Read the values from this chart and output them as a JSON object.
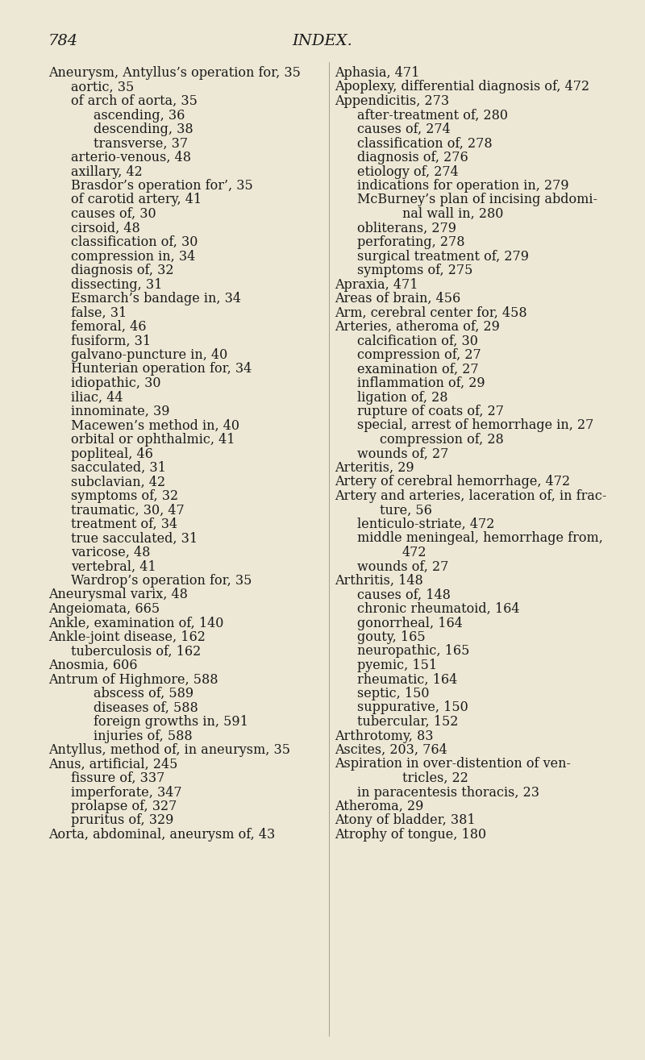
{
  "bg_color": "#ede8d5",
  "text_color": "#1a1a1a",
  "page_number": "784",
  "page_title": "INDEX.",
  "header_fontsize": 14,
  "body_fontsize": 11.5,
  "left_column": [
    [
      "Aneurysm, Antyllus’s operation for, 35",
      0
    ],
    [
      "aortic, 35",
      1
    ],
    [
      "of arch of aorta, 35",
      1
    ],
    [
      "ascending, 36",
      2
    ],
    [
      "descending, 38",
      2
    ],
    [
      "transverse, 37",
      2
    ],
    [
      "arterio-venous, 48",
      1
    ],
    [
      "axillary, 42",
      1
    ],
    [
      "Brasdor’s operation for’, 35",
      1
    ],
    [
      "of carotid artery, 41",
      1
    ],
    [
      "causes of, 30",
      1
    ],
    [
      "cirsoid, 48",
      1
    ],
    [
      "classification of, 30",
      1
    ],
    [
      "compression in, 34",
      1
    ],
    [
      "diagnosis of, 32",
      1
    ],
    [
      "dissecting, 31",
      1
    ],
    [
      "Esmarch’s bandage in, 34",
      1
    ],
    [
      "false, 31",
      1
    ],
    [
      "femoral, 46",
      1
    ],
    [
      "fusiform, 31",
      1
    ],
    [
      "galvano-puncture in, 40",
      1
    ],
    [
      "Hunterian operation for, 34",
      1
    ],
    [
      "idiopathic, 30",
      1
    ],
    [
      "iliac, 44",
      1
    ],
    [
      "innominate, 39",
      1
    ],
    [
      "Macewen’s method in, 40",
      1
    ],
    [
      "orbital or ophthalmic, 41",
      1
    ],
    [
      "popliteal, 46",
      1
    ],
    [
      "sacculated, 31",
      1
    ],
    [
      "subclavian, 42",
      1
    ],
    [
      "symptoms of, 32",
      1
    ],
    [
      "traumatic, 30, 47",
      1
    ],
    [
      "treatment of, 34",
      1
    ],
    [
      "true sacculated, 31",
      1
    ],
    [
      "varicose, 48",
      1
    ],
    [
      "vertebral, 41",
      1
    ],
    [
      "Wardrop’s operation for, 35",
      1
    ],
    [
      "Aneurysmal varix, 48",
      0
    ],
    [
      "Angeiomata, 665",
      0
    ],
    [
      "Ankle, examination of, 140",
      0
    ],
    [
      "Ankle-joint disease, 162",
      0
    ],
    [
      "tuberculosis of, 162",
      1
    ],
    [
      "Anosmia, 606",
      0
    ],
    [
      "Antrum of Highmore, 588",
      0
    ],
    [
      "abscess of, 589",
      2
    ],
    [
      "diseases of, 588",
      2
    ],
    [
      "foreign growths in, 591",
      2
    ],
    [
      "injuries of, 588",
      2
    ],
    [
      "Antyllus, method of, in aneurysm, 35",
      0
    ],
    [
      "Anus, artificial, 245",
      0
    ],
    [
      "fissure of, 337",
      1
    ],
    [
      "imperforate, 347",
      1
    ],
    [
      "prolapse of, 327",
      1
    ],
    [
      "pruritus of, 329",
      1
    ],
    [
      "Aorta, abdominal, aneurysm of, 43",
      0
    ]
  ],
  "right_column": [
    [
      "Aphasia, 471",
      0
    ],
    [
      "Apoplexy, differential diagnosis of, 472",
      0
    ],
    [
      "Appendicitis, 273",
      0
    ],
    [
      "after-treatment of, 280",
      1
    ],
    [
      "causes of, 274",
      1
    ],
    [
      "classification of, 278",
      1
    ],
    [
      "diagnosis of, 276",
      1
    ],
    [
      "etiology of, 274",
      1
    ],
    [
      "indications for operation in, 279",
      1
    ],
    [
      "McBurney’s plan of incising abdomi-",
      1
    ],
    [
      "nal wall in, 280",
      3
    ],
    [
      "obliterans, 279",
      1
    ],
    [
      "perforating, 278",
      1
    ],
    [
      "surgical treatment of, 279",
      1
    ],
    [
      "symptoms of, 275",
      1
    ],
    [
      "Apraxia, 471",
      0
    ],
    [
      "Areas of brain, 456",
      0
    ],
    [
      "Arm, cerebral center for, 458",
      0
    ],
    [
      "Arteries, atheroma of, 29",
      0
    ],
    [
      "calcification of, 30",
      1
    ],
    [
      "compression of, 27",
      1
    ],
    [
      "examination of, 27",
      1
    ],
    [
      "inflammation of, 29",
      1
    ],
    [
      "ligation of, 28",
      1
    ],
    [
      "rupture of coats of, 27",
      1
    ],
    [
      "special, arrest of hemorrhage in, 27",
      1
    ],
    [
      "compression of, 28",
      2
    ],
    [
      "wounds of, 27",
      1
    ],
    [
      "Arteritis, 29",
      0
    ],
    [
      "Artery of cerebral hemorrhage, 472",
      0
    ],
    [
      "Artery and arteries, laceration of, in frac-",
      0
    ],
    [
      "ture, 56",
      2
    ],
    [
      "lenticulo-striate, 472",
      1
    ],
    [
      "middle meningeal, hemorrhage from,",
      1
    ],
    [
      "472",
      3
    ],
    [
      "wounds of, 27",
      1
    ],
    [
      "Arthritis, 148",
      0
    ],
    [
      "causes of, 148",
      1
    ],
    [
      "chronic rheumatoid, 164",
      1
    ],
    [
      "gonorrheal, 164",
      1
    ],
    [
      "gouty, 165",
      1
    ],
    [
      "neuropathic, 165",
      1
    ],
    [
      "pyemic, 151",
      1
    ],
    [
      "rheumatic, 164",
      1
    ],
    [
      "septic, 150",
      1
    ],
    [
      "suppurative, 150",
      1
    ],
    [
      "tubercular, 152",
      1
    ],
    [
      "Arthrotomy, 83",
      0
    ],
    [
      "Ascites, 203, 764",
      0
    ],
    [
      "Aspiration in over-distention of ven-",
      0
    ],
    [
      "tricles, 22",
      3
    ],
    [
      "in paracentesis thoracis, 23",
      1
    ],
    [
      "Atheroma, 29",
      0
    ],
    [
      "Atony of bladder, 381",
      0
    ],
    [
      "Atrophy of tongue, 180",
      0
    ]
  ]
}
